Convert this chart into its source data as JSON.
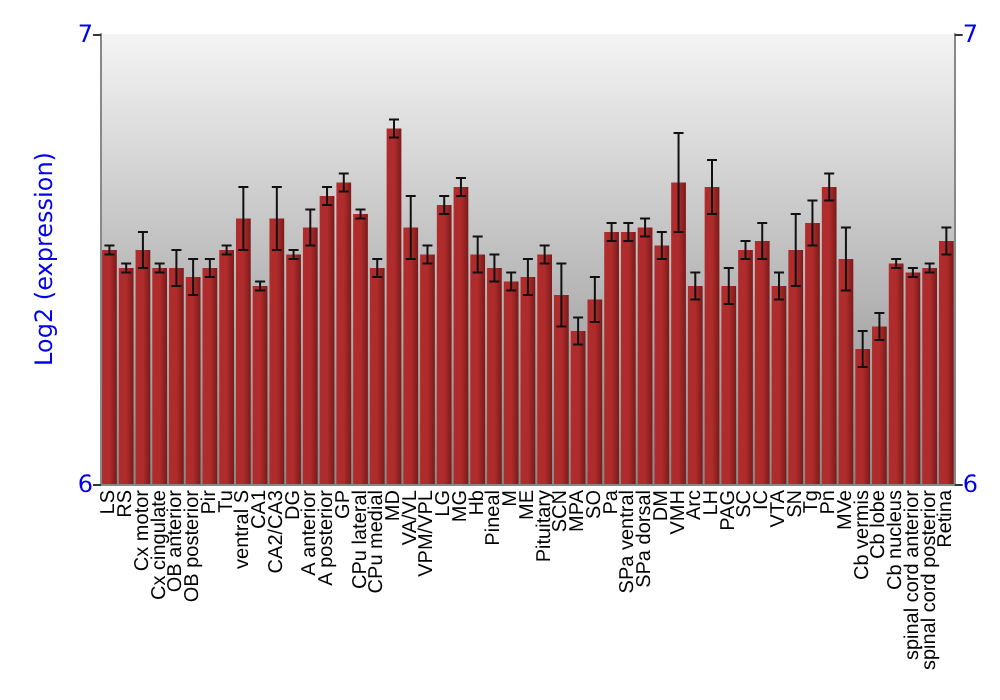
{
  "chart_data": {
    "type": "bar",
    "ylabel": "Log2 (expression)",
    "categories": [
      "LS",
      "RS",
      "Cx motor",
      "Cx cingulate",
      "OB anterior",
      "OB posterior",
      "Pir",
      "Tu",
      "ventral S",
      "CA1",
      "CA2/CA3",
      "DG",
      "A anterior",
      "A posterior",
      "GP",
      "CPu lateral",
      "CPu medial",
      "MD",
      "VA/VL",
      "VPM/VPL",
      "LG",
      "MG",
      "Hb",
      "Pineal",
      "M",
      "ME",
      "Pituitary",
      "SCN",
      "MPA",
      "SO",
      "Pa",
      "SPa ventral",
      "SPa dorsal",
      "DM",
      "VMH",
      "Arc",
      "LH",
      "PAG",
      "SC",
      "IC",
      "VTA",
      "SN",
      "Tg",
      "Pn",
      "MVe",
      "Cb vermis",
      "Cb lobe",
      "Cb nucleus",
      "spinal cord anterior",
      "spinal cord posterior",
      "Retina"
    ],
    "values": [
      6.52,
      6.48,
      6.52,
      6.48,
      6.48,
      6.46,
      6.48,
      6.52,
      6.59,
      6.44,
      6.59,
      6.51,
      6.57,
      6.64,
      6.67,
      6.6,
      6.48,
      6.79,
      6.57,
      6.51,
      6.62,
      6.66,
      6.51,
      6.48,
      6.45,
      6.46,
      6.51,
      6.42,
      6.34,
      6.41,
      6.56,
      6.56,
      6.57,
      6.53,
      6.67,
      6.44,
      6.66,
      6.44,
      6.52,
      6.54,
      6.44,
      6.52,
      6.58,
      6.66,
      6.5,
      6.3,
      6.35,
      6.49,
      6.47,
      6.48,
      6.54
    ],
    "errors": [
      0.01,
      0.01,
      0.04,
      0.01,
      0.04,
      0.04,
      0.02,
      0.01,
      0.07,
      0.01,
      0.07,
      0.01,
      0.04,
      0.02,
      0.02,
      0.01,
      0.02,
      0.02,
      0.07,
      0.02,
      0.02,
      0.02,
      0.04,
      0.03,
      0.02,
      0.04,
      0.02,
      0.07,
      0.03,
      0.05,
      0.02,
      0.02,
      0.02,
      0.03,
      0.11,
      0.03,
      0.06,
      0.04,
      0.02,
      0.04,
      0.03,
      0.08,
      0.05,
      0.03,
      0.07,
      0.04,
      0.03,
      0.01,
      0.01,
      0.01,
      0.03
    ],
    "color": "#b02c2c",
    "ylim": [
      6,
      7
    ],
    "yticks": [
      6,
      7
    ],
    "y2lim": [
      6,
      7
    ],
    "y2ticks": [
      6,
      7
    ]
  }
}
